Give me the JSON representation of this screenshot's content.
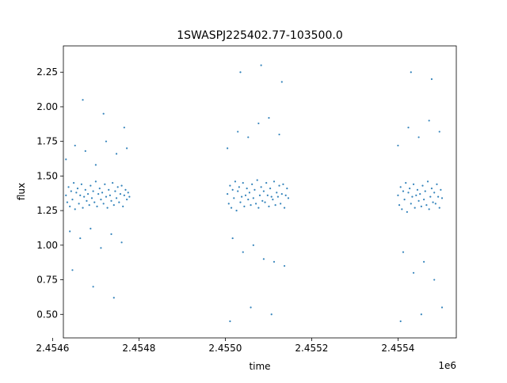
{
  "chart_data": {
    "type": "scatter",
    "title": "1SWASPJ225402.77-103500.0",
    "xlabel": "time",
    "ylabel": "flux",
    "x_offset_label": "1e6",
    "xlim": [
      2454625,
      2455535
    ],
    "ylim": [
      0.33,
      2.44
    ],
    "grid": false,
    "x_ticks": [
      {
        "value": 2454600,
        "label": "2.4546"
      },
      {
        "value": 2454800,
        "label": "2.4548"
      },
      {
        "value": 2455000,
        "label": "2.4550"
      },
      {
        "value": 2455200,
        "label": "2.4552"
      },
      {
        "value": 2455400,
        "label": "2.4554"
      }
    ],
    "y_ticks": [
      {
        "value": 0.5,
        "label": "0.50"
      },
      {
        "value": 0.75,
        "label": "0.75"
      },
      {
        "value": 1.0,
        "label": "1.00"
      },
      {
        "value": 1.25,
        "label": "1.25"
      },
      {
        "value": 1.5,
        "label": "1.50"
      },
      {
        "value": 1.75,
        "label": "1.75"
      },
      {
        "value": 2.0,
        "label": "2.00"
      },
      {
        "value": 2.25,
        "label": "2.25"
      }
    ],
    "marker_color": "#1f77b4",
    "series": [
      {
        "x": [
          2454631,
          2454634,
          2454637,
          2454640,
          2454643,
          2454646,
          2454649,
          2454652,
          2454655,
          2454658,
          2454661,
          2454664,
          2454667,
          2454670,
          2454673,
          2454676,
          2454679,
          2454682,
          2454685,
          2454688,
          2454691,
          2454694,
          2454697,
          2454700,
          2454703,
          2454706,
          2454709,
          2454712,
          2454715,
          2454718,
          2454721,
          2454724,
          2454727,
          2454730,
          2454733,
          2454736,
          2454739,
          2454742,
          2454745,
          2454748,
          2454751,
          2454754,
          2454757,
          2454760,
          2454763,
          2454766,
          2454769,
          2454772,
          2454775,
          2454778,
          2454631,
          2454640,
          2454652,
          2454664,
          2454676,
          2454688,
          2454700,
          2454712,
          2454724,
          2454736,
          2454748,
          2454760,
          2454772,
          2454646,
          2454670,
          2454694,
          2454718,
          2454742,
          2454766
        ],
        "y": [
          1.36,
          1.31,
          1.42,
          1.28,
          1.39,
          1.33,
          1.45,
          1.26,
          1.38,
          1.41,
          1.3,
          1.36,
          1.44,
          1.27,
          1.35,
          1.4,
          1.32,
          1.37,
          1.29,
          1.43,
          1.34,
          1.39,
          1.31,
          1.46,
          1.28,
          1.37,
          1.41,
          1.33,
          1.38,
          1.3,
          1.44,
          1.35,
          1.27,
          1.4,
          1.36,
          1.32,
          1.45,
          1.29,
          1.39,
          1.34,
          1.42,
          1.31,
          1.37,
          1.43,
          1.28,
          1.36,
          1.4,
          1.33,
          1.38,
          1.35,
          1.62,
          1.1,
          1.72,
          1.05,
          1.68,
          1.12,
          1.58,
          0.98,
          1.75,
          1.08,
          1.66,
          1.02,
          1.7,
          0.82,
          2.05,
          0.7,
          1.95,
          0.62,
          1.85
        ]
      },
      {
        "x": [
          2455005,
          2455008,
          2455011,
          2455014,
          2455017,
          2455020,
          2455023,
          2455026,
          2455029,
          2455032,
          2455035,
          2455038,
          2455041,
          2455044,
          2455047,
          2455050,
          2455053,
          2455056,
          2455059,
          2455062,
          2455065,
          2455068,
          2455071,
          2455074,
          2455077,
          2455080,
          2455083,
          2455086,
          2455089,
          2455092,
          2455095,
          2455098,
          2455101,
          2455104,
          2455107,
          2455110,
          2455113,
          2455116,
          2455119,
          2455122,
          2455125,
          2455128,
          2455131,
          2455134,
          2455137,
          2455140,
          2455143,
          2455146,
          2455005,
          2455017,
          2455029,
          2455041,
          2455053,
          2455065,
          2455077,
          2455089,
          2455101,
          2455113,
          2455125,
          2455137,
          2455011,
          2455035,
          2455059,
          2455083,
          2455107,
          2455131
        ],
        "y": [
          1.37,
          1.3,
          1.43,
          1.27,
          1.4,
          1.34,
          1.46,
          1.25,
          1.39,
          1.42,
          1.31,
          1.35,
          1.45,
          1.28,
          1.36,
          1.41,
          1.33,
          1.38,
          1.29,
          1.44,
          1.34,
          1.4,
          1.3,
          1.47,
          1.27,
          1.36,
          1.42,
          1.32,
          1.39,
          1.31,
          1.45,
          1.36,
          1.28,
          1.41,
          1.35,
          1.33,
          1.46,
          1.29,
          1.38,
          1.35,
          1.43,
          1.3,
          1.37,
          1.44,
          1.27,
          1.36,
          1.41,
          1.34,
          1.7,
          1.05,
          1.82,
          0.95,
          1.78,
          1.0,
          1.88,
          0.9,
          1.92,
          0.88,
          1.8,
          0.85,
          0.45,
          2.25,
          0.55,
          2.3,
          0.5,
          2.18
        ]
      },
      {
        "x": [
          2455400,
          2455403,
          2455406,
          2455409,
          2455412,
          2455415,
          2455418,
          2455421,
          2455424,
          2455427,
          2455430,
          2455433,
          2455436,
          2455439,
          2455442,
          2455445,
          2455448,
          2455451,
          2455454,
          2455457,
          2455460,
          2455463,
          2455466,
          2455469,
          2455472,
          2455475,
          2455478,
          2455481,
          2455484,
          2455487,
          2455490,
          2455493,
          2455496,
          2455499,
          2455502,
          2455400,
          2455412,
          2455424,
          2455436,
          2455448,
          2455460,
          2455472,
          2455484,
          2455496,
          2455406,
          2455430,
          2455454,
          2455478,
          2455502
        ],
        "y": [
          1.36,
          1.29,
          1.42,
          1.26,
          1.39,
          1.33,
          1.45,
          1.24,
          1.38,
          1.41,
          1.3,
          1.35,
          1.44,
          1.27,
          1.36,
          1.4,
          1.32,
          1.37,
          1.28,
          1.43,
          1.33,
          1.39,
          1.29,
          1.46,
          1.26,
          1.35,
          1.41,
          1.31,
          1.38,
          1.3,
          1.44,
          1.35,
          1.27,
          1.4,
          1.34,
          1.72,
          0.95,
          1.85,
          0.8,
          1.78,
          0.88,
          1.9,
          0.75,
          1.82,
          0.45,
          2.25,
          0.5,
          2.2,
          0.55
        ]
      }
    ]
  }
}
